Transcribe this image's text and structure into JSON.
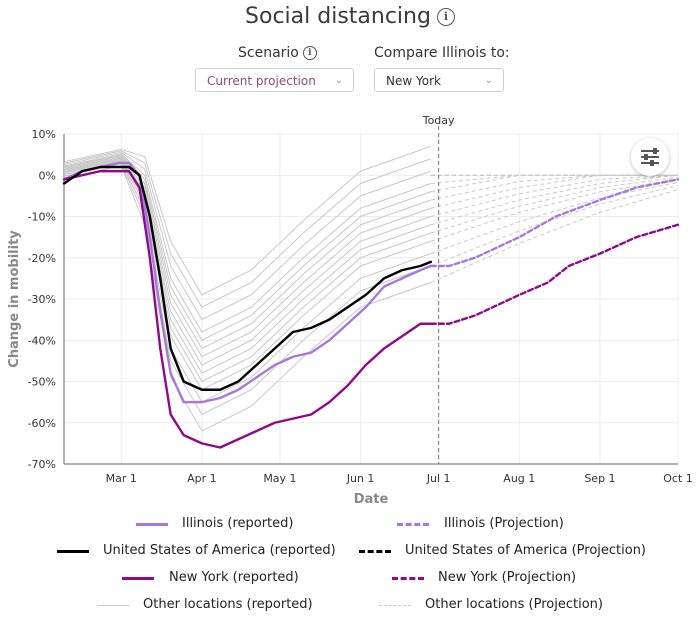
{
  "header": {
    "title": "Social distancing"
  },
  "controls": {
    "scenario_label": "Scenario",
    "scenario_value": "Current projection",
    "compare_label": "Compare Illinois to:",
    "compare_value": "New York"
  },
  "colors": {
    "illinois": "#a878d8",
    "usa": "#000000",
    "new_york": "#8e0a8a",
    "other": "#c8c8c8",
    "today_line": "#777777"
  },
  "chart_data": {
    "type": "line",
    "title": "",
    "xlabel": "Date",
    "ylabel": "Change in mobility",
    "x_domain": [
      "2020-02-08",
      "2020-10-01"
    ],
    "ylim": [
      -70,
      10
    ],
    "x_ticks": [
      {
        "date": "2020-03-01",
        "label": "Mar 1"
      },
      {
        "date": "2020-04-01",
        "label": "Apr 1"
      },
      {
        "date": "2020-05-01",
        "label": "May 1"
      },
      {
        "date": "2020-06-01",
        "label": "Jun 1"
      },
      {
        "date": "2020-07-01",
        "label": "Jul 1"
      },
      {
        "date": "2020-08-01",
        "label": "Aug 1"
      },
      {
        "date": "2020-09-01",
        "label": "Sep 1"
      },
      {
        "date": "2020-10-01",
        "label": "Oct 1"
      }
    ],
    "y_ticks": [
      10,
      0,
      -10,
      -20,
      -30,
      -40,
      -50,
      -60,
      -70
    ],
    "y_tick_labels": [
      "10%",
      "0%",
      "-10%",
      "-20%",
      "-30%",
      "-40%",
      "-50%",
      "-60%",
      "-70%"
    ],
    "today": {
      "date": "2020-07-01",
      "label": "Today"
    },
    "grid": true,
    "series": [
      {
        "name": "Illinois (reported)",
        "key": "illinois",
        "style": "solid",
        "points": [
          [
            "2020-02-08",
            -1
          ],
          [
            "2020-02-15",
            1
          ],
          [
            "2020-02-22",
            2
          ],
          [
            "2020-02-29",
            3
          ],
          [
            "2020-03-04",
            3
          ],
          [
            "2020-03-08",
            0
          ],
          [
            "2020-03-12",
            -15
          ],
          [
            "2020-03-16",
            -33
          ],
          [
            "2020-03-20",
            -48
          ],
          [
            "2020-03-25",
            -55
          ],
          [
            "2020-04-01",
            -55
          ],
          [
            "2020-04-08",
            -54
          ],
          [
            "2020-04-15",
            -52
          ],
          [
            "2020-04-22",
            -49
          ],
          [
            "2020-04-29",
            -46
          ],
          [
            "2020-05-06",
            -44
          ],
          [
            "2020-05-13",
            -43
          ],
          [
            "2020-05-20",
            -40
          ],
          [
            "2020-05-27",
            -36
          ],
          [
            "2020-06-03",
            -32
          ],
          [
            "2020-06-10",
            -27
          ],
          [
            "2020-06-17",
            -25
          ],
          [
            "2020-06-24",
            -23
          ],
          [
            "2020-06-28",
            -22
          ]
        ]
      },
      {
        "name": "Illinois (Projection)",
        "key": "illinois",
        "style": "dashed",
        "points": [
          [
            "2020-06-28",
            -22
          ],
          [
            "2020-07-05",
            -22
          ],
          [
            "2020-07-15",
            -20
          ],
          [
            "2020-08-01",
            -15
          ],
          [
            "2020-08-15",
            -10
          ],
          [
            "2020-09-01",
            -6
          ],
          [
            "2020-09-15",
            -3
          ],
          [
            "2020-10-01",
            -1
          ]
        ]
      },
      {
        "name": "United States of America (reported)",
        "key": "usa",
        "style": "solid",
        "points": [
          [
            "2020-02-08",
            -2
          ],
          [
            "2020-02-15",
            1
          ],
          [
            "2020-02-22",
            2
          ],
          [
            "2020-02-29",
            2
          ],
          [
            "2020-03-04",
            2
          ],
          [
            "2020-03-08",
            0
          ],
          [
            "2020-03-12",
            -10
          ],
          [
            "2020-03-16",
            -25
          ],
          [
            "2020-03-20",
            -42
          ],
          [
            "2020-03-25",
            -50
          ],
          [
            "2020-04-01",
            -52
          ],
          [
            "2020-04-08",
            -52
          ],
          [
            "2020-04-15",
            -50
          ],
          [
            "2020-04-22",
            -46
          ],
          [
            "2020-04-29",
            -42
          ],
          [
            "2020-05-06",
            -38
          ],
          [
            "2020-05-13",
            -37
          ],
          [
            "2020-05-20",
            -35
          ],
          [
            "2020-05-27",
            -32
          ],
          [
            "2020-06-03",
            -29
          ],
          [
            "2020-06-10",
            -25
          ],
          [
            "2020-06-17",
            -23
          ],
          [
            "2020-06-24",
            -22
          ],
          [
            "2020-06-28",
            -21
          ]
        ]
      },
      {
        "name": "United States of America (Projection)",
        "key": "usa",
        "style": "dashed",
        "points": []
      },
      {
        "name": "New York (reported)",
        "key": "new_york",
        "style": "solid",
        "points": [
          [
            "2020-02-08",
            -1
          ],
          [
            "2020-02-15",
            0
          ],
          [
            "2020-02-22",
            1
          ],
          [
            "2020-02-29",
            1
          ],
          [
            "2020-03-04",
            1
          ],
          [
            "2020-03-08",
            -3
          ],
          [
            "2020-03-12",
            -20
          ],
          [
            "2020-03-16",
            -42
          ],
          [
            "2020-03-20",
            -58
          ],
          [
            "2020-03-25",
            -63
          ],
          [
            "2020-04-01",
            -65
          ],
          [
            "2020-04-08",
            -66
          ],
          [
            "2020-04-15",
            -64
          ],
          [
            "2020-04-22",
            -62
          ],
          [
            "2020-04-29",
            -60
          ],
          [
            "2020-05-06",
            -59
          ],
          [
            "2020-05-13",
            -58
          ],
          [
            "2020-05-20",
            -55
          ],
          [
            "2020-05-27",
            -51
          ],
          [
            "2020-06-03",
            -46
          ],
          [
            "2020-06-10",
            -42
          ],
          [
            "2020-06-17",
            -39
          ],
          [
            "2020-06-24",
            -36
          ],
          [
            "2020-06-28",
            -36
          ]
        ]
      },
      {
        "name": "New York (Projection)",
        "key": "new_york",
        "style": "dashed",
        "points": [
          [
            "2020-06-28",
            -36
          ],
          [
            "2020-07-05",
            -36
          ],
          [
            "2020-07-15",
            -34
          ],
          [
            "2020-08-01",
            -29
          ],
          [
            "2020-08-12",
            -26
          ],
          [
            "2020-08-20",
            -22
          ],
          [
            "2020-09-01",
            -19
          ],
          [
            "2020-09-15",
            -15
          ],
          [
            "2020-10-01",
            -12
          ]
        ]
      },
      {
        "name": "Other locations (reported)",
        "key": "other",
        "style": "solid",
        "points": [
          [
            "2020-02-08",
            1
          ],
          [
            "2020-03-01",
            4
          ],
          [
            "2020-03-10",
            -5
          ],
          [
            "2020-03-20",
            -35
          ],
          [
            "2020-04-01",
            -48
          ],
          [
            "2020-04-20",
            -42
          ],
          [
            "2020-05-10",
            -30
          ],
          [
            "2020-06-01",
            -18
          ],
          [
            "2020-06-28",
            -12
          ]
        ]
      },
      {
        "name": "Other locations (Projection)",
        "key": "other",
        "style": "dashed",
        "points": [
          [
            "2020-06-28",
            -12
          ],
          [
            "2020-08-01",
            -6
          ],
          [
            "2020-09-01",
            -2
          ],
          [
            "2020-10-01",
            0
          ]
        ]
      }
    ]
  }
}
